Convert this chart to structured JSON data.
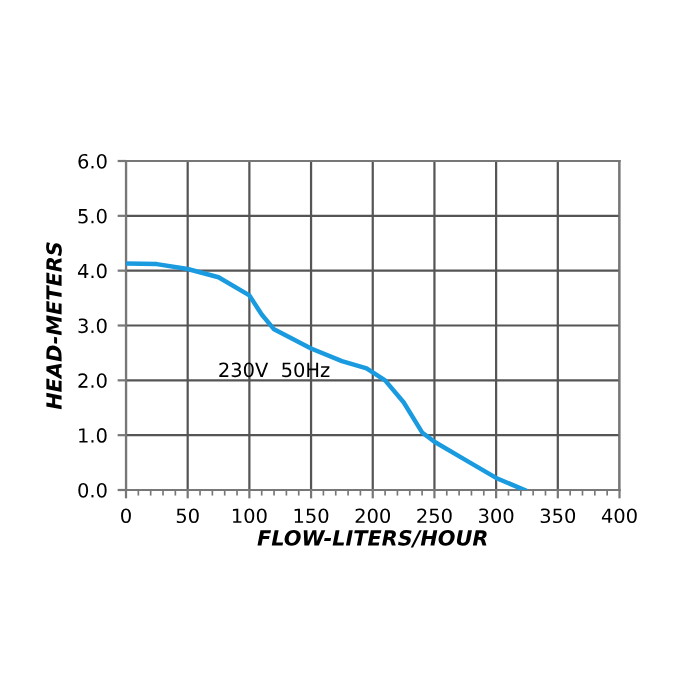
{
  "chart_data": {
    "type": "line",
    "xlabel": "FLOW-LITERS/HOUR",
    "ylabel": "HEAD-METERS",
    "annotations": [
      "230V  50Hz"
    ],
    "x": [
      0,
      25,
      50,
      75,
      100,
      110,
      120,
      150,
      175,
      195,
      210,
      225,
      240,
      250,
      275,
      300,
      323
    ],
    "series": [
      {
        "color": "#1a9be0",
        "values": [
          4.13,
          4.12,
          4.03,
          3.88,
          3.55,
          3.2,
          2.93,
          2.58,
          2.35,
          2.22,
          2.0,
          1.6,
          1.05,
          0.88,
          0.55,
          0.22,
          0.0
        ]
      }
    ],
    "xlim": [
      0,
      400
    ],
    "ylim": [
      0,
      6
    ],
    "xticks": [
      0,
      {
        "value": 10,
        "label": null
      },
      {
        "value": 20,
        "label": null
      },
      {
        "value": 30,
        "label": null
      },
      {
        "value": 40,
        "label": null
      },
      50,
      {
        "value": 60,
        "label": null
      },
      {
        "value": 70,
        "label": null
      },
      {
        "value": 80,
        "label": null
      },
      {
        "value": 90,
        "label": null
      },
      100,
      {
        "value": 110,
        "label": null
      },
      {
        "value": 120,
        "label": null
      },
      {
        "value": 130,
        "label": null
      },
      {
        "value": 140,
        "label": null
      },
      150,
      {
        "value": 160,
        "label": null
      },
      {
        "value": 170,
        "label": null
      },
      {
        "value": 180,
        "label": null
      },
      {
        "value": 190,
        "label": null
      },
      200,
      {
        "value": 210,
        "label": null
      },
      {
        "value": 220,
        "label": null
      },
      {
        "value": 230,
        "label": null
      },
      {
        "value": 240,
        "label": null
      },
      250,
      {
        "value": 260,
        "label": null
      },
      {
        "value": 270,
        "label": null
      },
      {
        "value": 280,
        "label": null
      },
      {
        "value": 290,
        "label": null
      },
      300,
      {
        "value": 310,
        "label": null
      },
      {
        "value": 320,
        "label": null
      },
      {
        "value": 330,
        "label": null
      },
      {
        "value": 340,
        "label": null
      },
      350,
      {
        "value": 360,
        "label": null
      },
      {
        "value": 370,
        "label": null
      },
      {
        "value": 380,
        "label": null
      },
      {
        "value": 390,
        "label": null
      },
      400
    ],
    "yticks": [
      {
        "value": 0,
        "label": "0.0"
      },
      {
        "value": 1,
        "label": "1.0"
      },
      {
        "value": 2,
        "label": "2.0"
      },
      {
        "value": 3,
        "label": "3.0"
      },
      {
        "value": 4,
        "label": "4.0"
      },
      {
        "value": 5,
        "label": "5.0"
      },
      {
        "value": 6,
        "label": "6.0"
      }
    ],
    "grid": true,
    "marker": "none",
    "line_style": "solid"
  }
}
